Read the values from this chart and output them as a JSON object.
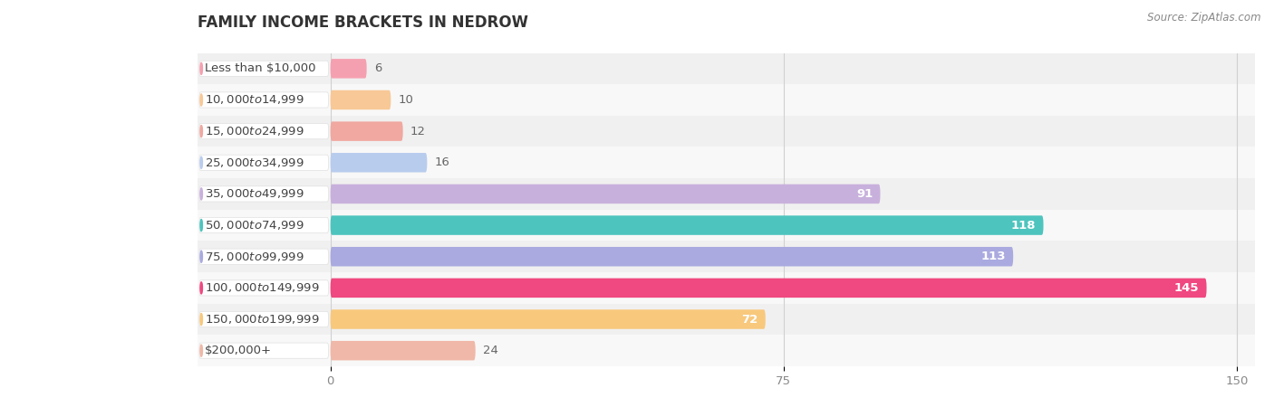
{
  "title": "FAMILY INCOME BRACKETS IN NEDROW",
  "source": "Source: ZipAtlas.com",
  "categories": [
    "Less than $10,000",
    "$10,000 to $14,999",
    "$15,000 to $24,999",
    "$25,000 to $34,999",
    "$35,000 to $49,999",
    "$50,000 to $74,999",
    "$75,000 to $99,999",
    "$100,000 to $149,999",
    "$150,000 to $199,999",
    "$200,000+"
  ],
  "values": [
    6,
    10,
    12,
    16,
    91,
    118,
    113,
    145,
    72,
    24
  ],
  "bar_colors": [
    "#F5A0B0",
    "#F8C896",
    "#F0A8A0",
    "#B8CCEE",
    "#C8B0DC",
    "#4EC4BE",
    "#AAAAE0",
    "#F04880",
    "#F8C87C",
    "#F0B8A8"
  ],
  "xlim_max": 150,
  "xticks": [
    0,
    75,
    150
  ],
  "threshold_white_label": 30,
  "row_colors": [
    "#f0f0f0",
    "#f8f8f8"
  ],
  "title_fontsize": 12,
  "bar_height": 0.62,
  "label_fontsize": 9.5,
  "value_fontsize": 9.5
}
